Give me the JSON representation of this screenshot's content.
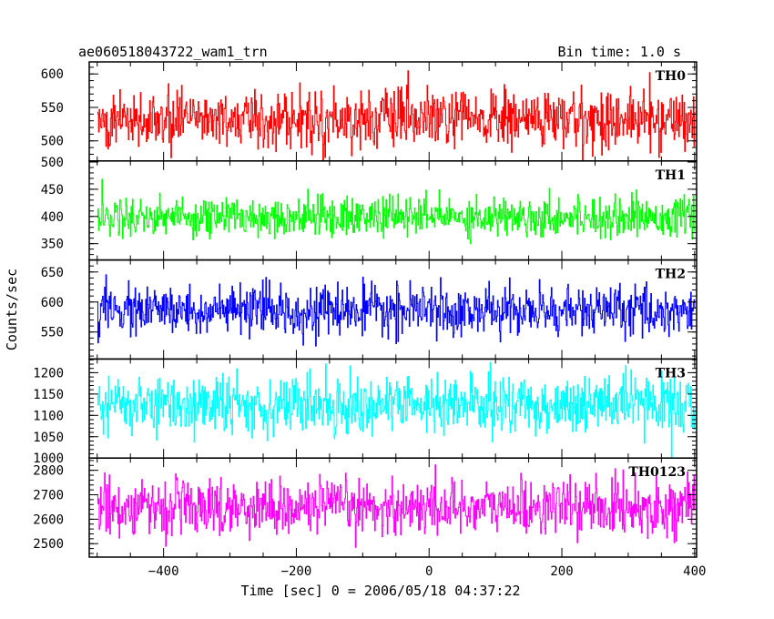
{
  "header": {
    "obs_id": "ae060518043722_wam1_trn",
    "bin_time": "Bin time: 1.0 s"
  },
  "chart_data": {
    "type": "line",
    "title": "ae060518043722_wam1_trn",
    "xlabel": "Time [sec] 0 = 2006/05/18 04:37:22",
    "ylabel": "Counts/sec",
    "xlim": [
      -512,
      403
    ],
    "x_start": -500,
    "x_end": 400,
    "x_step": 1,
    "x_ticks": [
      -400,
      -200,
      0,
      200,
      400
    ],
    "grid": false,
    "legend": "none",
    "panels": [
      {
        "name": "TH0",
        "color": "#ff0000",
        "mean": 532,
        "spread": 22,
        "ylim": [
          470,
          618
        ],
        "y_ticks": [
          500,
          550,
          600
        ],
        "clip_min": 470,
        "clip_max": 618
      },
      {
        "name": "TH1",
        "color": "#00ff00",
        "mean": 400,
        "spread": 18,
        "ylim": [
          320,
          502
        ],
        "y_ticks": [
          350,
          400,
          450,
          500
        ],
        "clip_min": 345,
        "clip_max": 480
      },
      {
        "name": "TH2",
        "color": "#0000ff",
        "mean": 585,
        "spread": 20,
        "ylim": [
          505,
          670
        ],
        "y_ticks": [
          550,
          600,
          650
        ],
        "clip_min": 512,
        "clip_max": 670
      },
      {
        "name": "TH3",
        "color": "#00ffff",
        "mean": 1125,
        "spread": 34,
        "ylim": [
          1000,
          1232
        ],
        "y_ticks": [
          1000,
          1050,
          1100,
          1150,
          1200
        ],
        "clip_min": 1000,
        "clip_max": 1232
      },
      {
        "name": "TH0123",
        "color": "#ff00ff",
        "mean": 2650,
        "spread": 55,
        "ylim": [
          2445,
          2850
        ],
        "y_ticks": [
          2500,
          2600,
          2700,
          2800
        ],
        "clip_min": 2445,
        "clip_max": 2850
      }
    ]
  }
}
